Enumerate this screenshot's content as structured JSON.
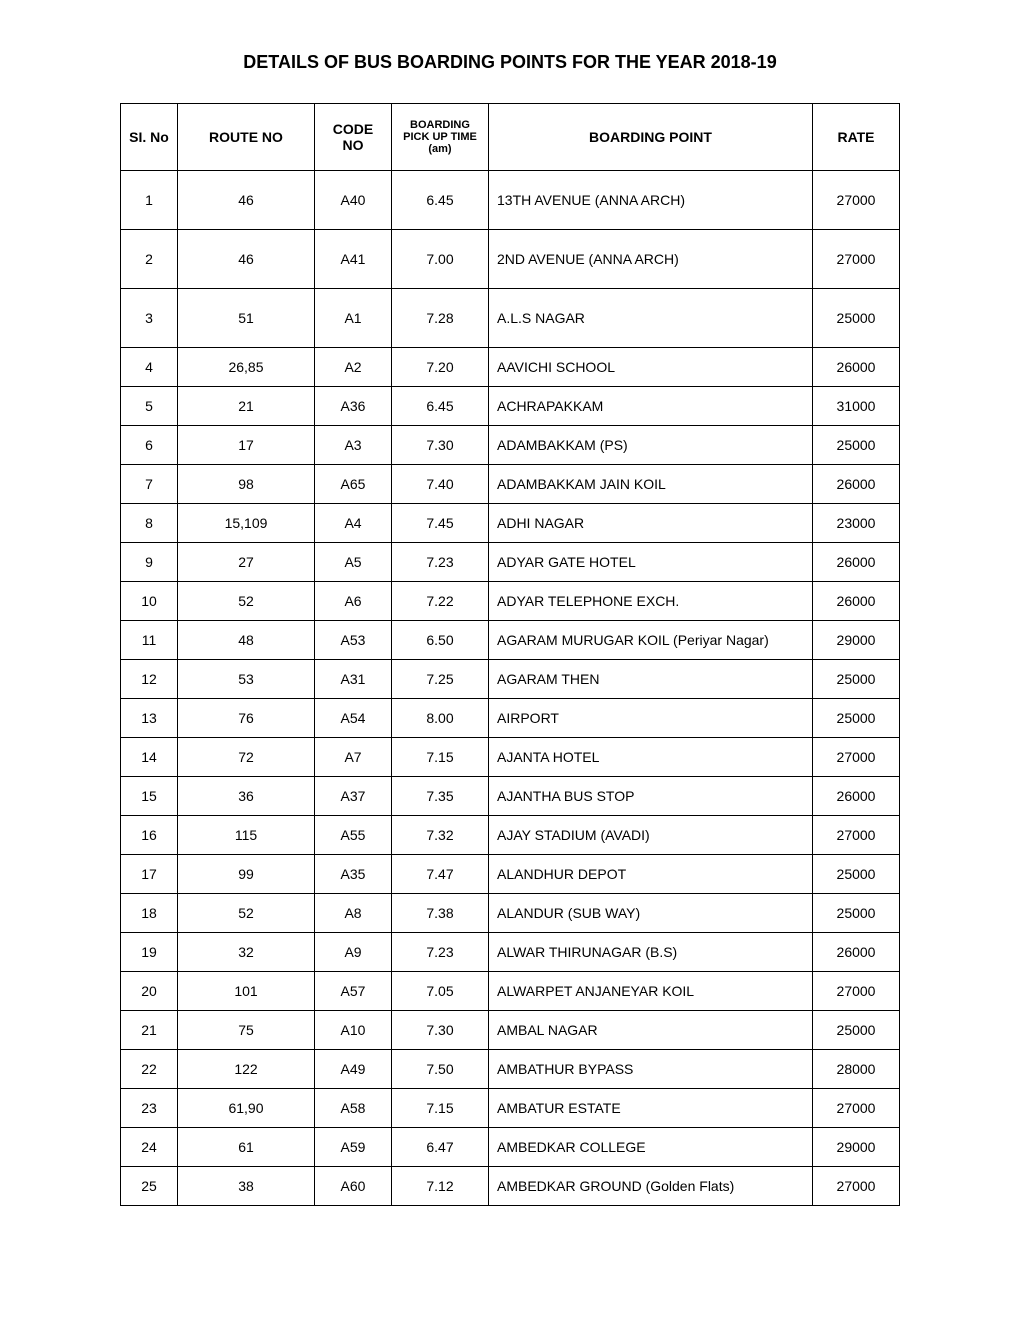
{
  "title": "DETAILS OF BUS BOARDING POINTS FOR THE YEAR 2018-19",
  "columns": [
    "SI. No",
    "ROUTE NO",
    "CODE NO",
    "BOARDING PICK UP TIME (am)",
    "BOARDING POINT",
    "RATE"
  ],
  "rows": [
    {
      "si": "1",
      "route": "46",
      "code": "A40",
      "time": "6.45",
      "point": "13TH AVENUE (ANNA ARCH)",
      "rate": "27000",
      "tall": true
    },
    {
      "si": "2",
      "route": "46",
      "code": "A41",
      "time": "7.00",
      "point": "2ND AVENUE (ANNA ARCH)",
      "rate": "27000",
      "tall": true
    },
    {
      "si": "3",
      "route": "51",
      "code": "A1",
      "time": "7.28",
      "point": "A.L.S NAGAR",
      "rate": "25000",
      "tall": true
    },
    {
      "si": "4",
      "route": "26,85",
      "code": "A2",
      "time": "7.20",
      "point": "AAVICHI SCHOOL",
      "rate": "26000"
    },
    {
      "si": "5",
      "route": "21",
      "code": "A36",
      "time": "6.45",
      "point": "ACHRAPAKKAM",
      "rate": "31000"
    },
    {
      "si": "6",
      "route": "17",
      "code": "A3",
      "time": "7.30",
      "point": "ADAMBAKKAM (PS)",
      "rate": "25000"
    },
    {
      "si": "7",
      "route": "98",
      "code": "A65",
      "time": "7.40",
      "point": "ADAMBAKKAM JAIN KOIL",
      "rate": "26000"
    },
    {
      "si": "8",
      "route": "15,109",
      "code": "A4",
      "time": "7.45",
      "point": "ADHI NAGAR",
      "rate": "23000"
    },
    {
      "si": "9",
      "route": "27",
      "code": "A5",
      "time": "7.23",
      "point": "ADYAR GATE HOTEL",
      "rate": "26000"
    },
    {
      "si": "10",
      "route": "52",
      "code": "A6",
      "time": "7.22",
      "point": "ADYAR TELEPHONE EXCH.",
      "rate": "26000"
    },
    {
      "si": "11",
      "route": "48",
      "code": "A53",
      "time": "6.50",
      "point": "AGARAM MURUGAR KOIL (Periyar Nagar)",
      "rate": "29000"
    },
    {
      "si": "12",
      "route": "53",
      "code": "A31",
      "time": "7.25",
      "point": "AGARAM THEN",
      "rate": "25000"
    },
    {
      "si": "13",
      "route": "76",
      "code": "A54",
      "time": "8.00",
      "point": "AIRPORT",
      "rate": "25000"
    },
    {
      "si": "14",
      "route": "72",
      "code": "A7",
      "time": "7.15",
      "point": "AJANTA HOTEL",
      "rate": "27000"
    },
    {
      "si": "15",
      "route": "36",
      "code": "A37",
      "time": "7.35",
      "point": "AJANTHA BUS STOP",
      "rate": "26000"
    },
    {
      "si": "16",
      "route": "115",
      "code": "A55",
      "time": "7.32",
      "point": "AJAY STADIUM (AVADI)",
      "rate": "27000"
    },
    {
      "si": "17",
      "route": "99",
      "code": "A35",
      "time": "7.47",
      "point": "ALANDHUR DEPOT",
      "rate": "25000"
    },
    {
      "si": "18",
      "route": "52",
      "code": "A8",
      "time": "7.38",
      "point": "ALANDUR (SUB WAY)",
      "rate": "25000"
    },
    {
      "si": "19",
      "route": "32",
      "code": "A9",
      "time": "7.23",
      "point": "ALWAR  THIRUNAGAR (B.S)",
      "rate": "26000"
    },
    {
      "si": "20",
      "route": "101",
      "code": "A57",
      "time": "7.05",
      "point": "ALWARPET ANJANEYAR KOIL",
      "rate": "27000"
    },
    {
      "si": "21",
      "route": "75",
      "code": "A10",
      "time": "7.30",
      "point": "AMBAL NAGAR",
      "rate": "25000"
    },
    {
      "si": "22",
      "route": "122",
      "code": "A49",
      "time": "7.50",
      "point": "AMBATHUR BYPASS",
      "rate": "28000"
    },
    {
      "si": "23",
      "route": "61,90",
      "code": "A58",
      "time": "7.15",
      "point": "AMBATUR ESTATE",
      "rate": "27000"
    },
    {
      "si": "24",
      "route": "61",
      "code": "A59",
      "time": "6.47",
      "point": "AMBEDKAR COLLEGE",
      "rate": "29000"
    },
    {
      "si": "25",
      "route": "38",
      "code": "A60",
      "time": "7.12",
      "point": "AMBEDKAR GROUND (Golden Flats)",
      "rate": "27000"
    }
  ]
}
